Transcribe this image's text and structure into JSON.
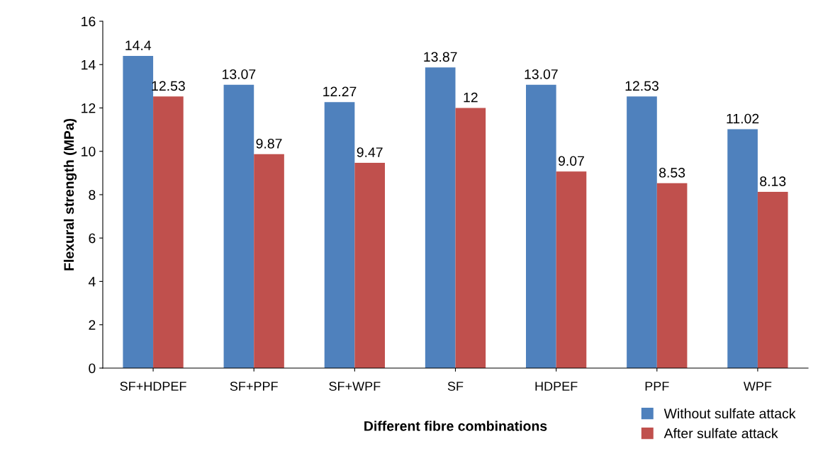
{
  "chart_data": {
    "type": "bar",
    "xlabel": "Different fibre combinations",
    "ylabel": "Flexural strength (MPa)",
    "categories": [
      "SF+HDPEF",
      "SF+PPF",
      "SF+WPF",
      "SF",
      "HDPEF",
      "PPF",
      "WPF"
    ],
    "series": [
      {
        "name": "Without sulfate attack",
        "color": "#4f81bd",
        "values": [
          14.4,
          13.07,
          12.27,
          13.87,
          13.07,
          12.53,
          11.02
        ]
      },
      {
        "name": "After sulfate attack",
        "color": "#c0504d",
        "values": [
          12.53,
          9.87,
          9.47,
          12,
          9.07,
          8.53,
          8.13
        ]
      }
    ],
    "ylim": [
      0,
      16
    ],
    "yticks": [
      0,
      2,
      4,
      6,
      8,
      10,
      12,
      14,
      16
    ],
    "data_labels": true,
    "grid": false,
    "legend": "bottom right"
  }
}
